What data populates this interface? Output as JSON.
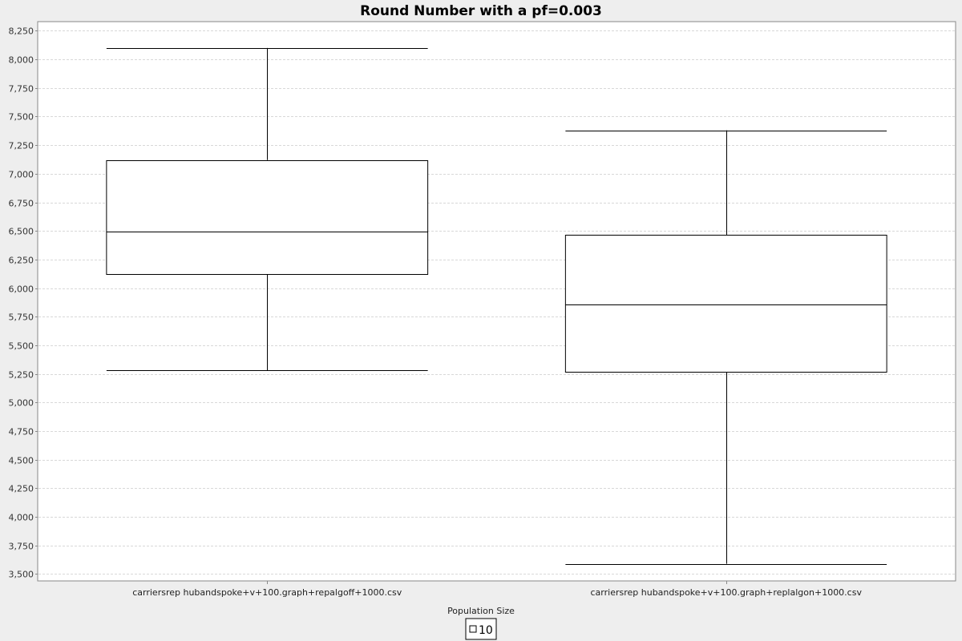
{
  "chart_data": {
    "type": "boxplot",
    "title": "Round Number with a pf=0.003",
    "xlabel": "",
    "ylabel": "",
    "ylim": [
      3440,
      8330
    ],
    "yticks": [
      3500,
      3750,
      4000,
      4250,
      4500,
      4750,
      5000,
      5250,
      5500,
      5750,
      6000,
      6250,
      6500,
      6750,
      7000,
      7250,
      7500,
      7750,
      8000,
      8250
    ],
    "ytick_labels": [
      "3,500",
      "3,750",
      "4,000",
      "4,250",
      "4,500",
      "4,750",
      "5,000",
      "5,250",
      "5,500",
      "5,750",
      "6,000",
      "6,250",
      "6,500",
      "6,750",
      "7,000",
      "7,250",
      "7,500",
      "7,750",
      "8,000",
      "8,250"
    ],
    "grid": true,
    "legend": {
      "title": "Population Size",
      "position": "bottom",
      "entries": [
        "10"
      ]
    },
    "categories": [
      "carriersrep hubandspoke+v+100.graph+repalgoff+1000.csv",
      "carriersrep hubandspoke+v+100.graph+replalgon+1000.csv"
    ],
    "series": [
      {
        "name": "10",
        "boxes": [
          {
            "whisker_low": 5280,
            "q1": 6125,
            "median": 6495,
            "q3": 7120,
            "whisker_high": 8100
          },
          {
            "whisker_low": 3590,
            "q1": 5265,
            "median": 5860,
            "q3": 6465,
            "whisker_high": 7380
          }
        ]
      }
    ]
  },
  "colors": {
    "background": "#eeeeee",
    "plot_background": "#ffffff",
    "box_fill": "#ffffff",
    "box_stroke": "#000000",
    "gridline": "#d8d8d8",
    "plot_border": "#888888"
  }
}
